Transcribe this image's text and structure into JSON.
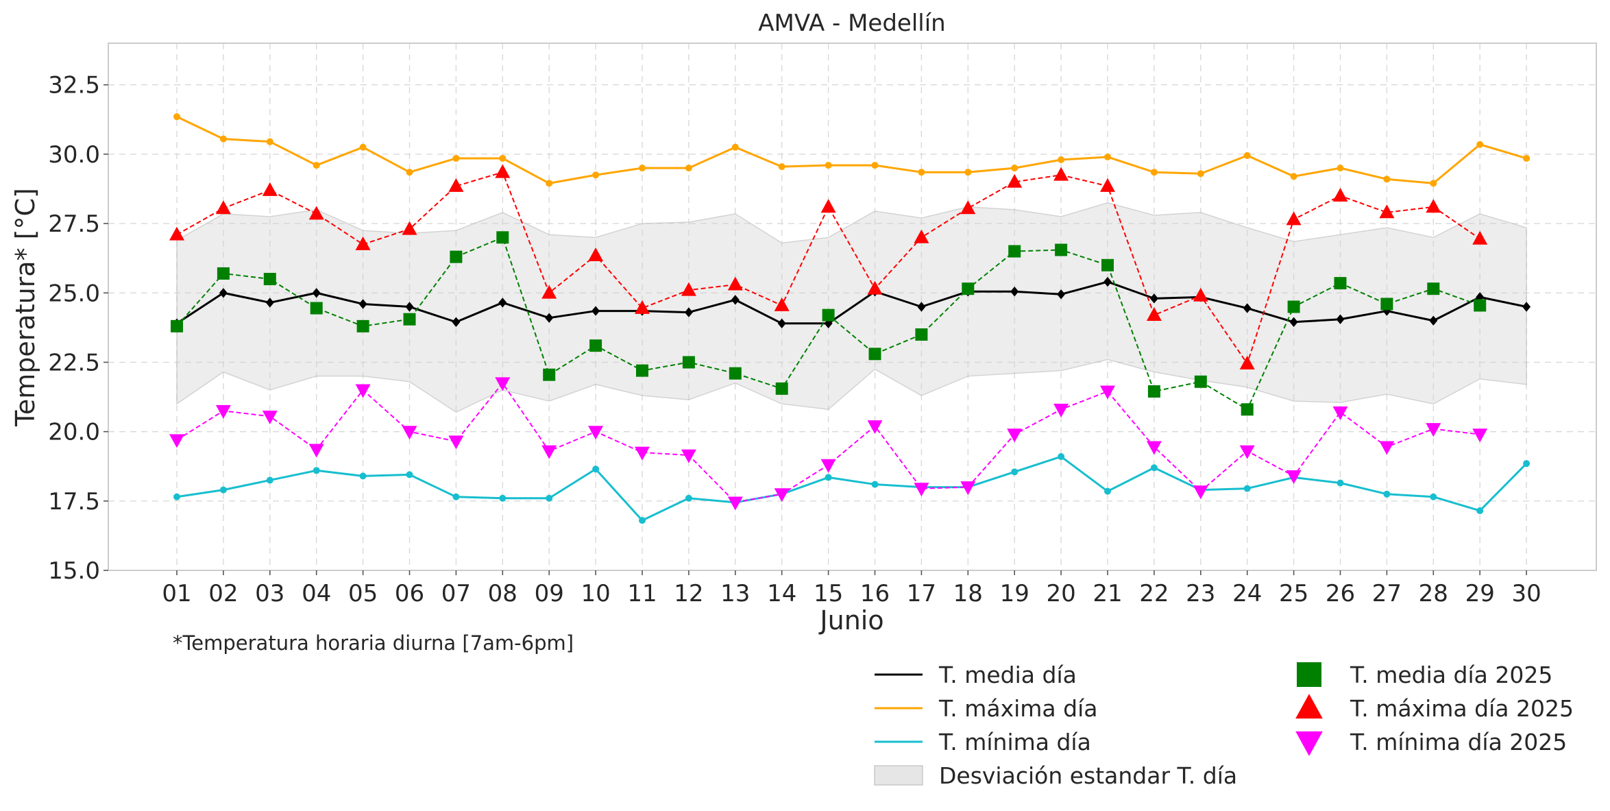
{
  "chart_data": {
    "type": "line",
    "title": "AMVA - Medellín",
    "xlabel": "Junio",
    "ylabel": "Temperatura* [°C]",
    "note": "*Temperatura horaria diurna [7am-6pm]",
    "categories": [
      "01",
      "02",
      "03",
      "04",
      "05",
      "06",
      "07",
      "08",
      "09",
      "10",
      "11",
      "12",
      "13",
      "14",
      "15",
      "16",
      "17",
      "18",
      "19",
      "20",
      "21",
      "22",
      "23",
      "24",
      "25",
      "26",
      "27",
      "28",
      "29",
      "30"
    ],
    "ylim": [
      15.0,
      34.0
    ],
    "yticks": [
      "15.0",
      "17.5",
      "20.0",
      "22.5",
      "25.0",
      "27.5",
      "30.0",
      "32.5"
    ],
    "grid": true,
    "legend_position": "lower-right, outside plot",
    "series": [
      {
        "name": "T. media día",
        "color": "#000000",
        "style": "solid-line",
        "marker": "diamond",
        "values": [
          23.9,
          25.0,
          24.65,
          25.0,
          24.6,
          24.5,
          23.95,
          24.65,
          24.1,
          24.35,
          24.35,
          24.3,
          24.75,
          23.9,
          23.9,
          25.05,
          24.5,
          25.05,
          25.05,
          24.95,
          25.4,
          24.8,
          24.85,
          24.45,
          23.95,
          24.05,
          24.35,
          24.0,
          24.85,
          24.5
        ]
      },
      {
        "name": "T. máxima día",
        "color": "#ffa500",
        "style": "solid-line",
        "marker": "circle",
        "values": [
          31.35,
          30.55,
          30.45,
          29.6,
          30.25,
          29.35,
          29.85,
          29.85,
          28.95,
          29.25,
          29.5,
          29.5,
          30.25,
          29.55,
          29.6,
          29.6,
          29.35,
          29.35,
          29.5,
          29.8,
          29.9,
          29.35,
          29.3,
          29.95,
          29.2,
          29.5,
          29.1,
          28.95,
          30.35,
          29.85
        ]
      },
      {
        "name": "T. mínima día",
        "color": "#17becf",
        "style": "solid-line",
        "marker": "circle",
        "values": [
          17.65,
          17.9,
          18.25,
          18.6,
          18.4,
          18.45,
          17.65,
          17.6,
          17.6,
          18.65,
          16.8,
          17.6,
          17.45,
          17.75,
          18.35,
          18.1,
          18.0,
          18.0,
          18.55,
          19.1,
          17.85,
          18.7,
          17.9,
          17.95,
          18.35,
          18.15,
          17.75,
          17.65,
          17.15,
          18.85
        ]
      },
      {
        "name": "Desviación estandar T. día",
        "color": "#bdbdbd",
        "style": "band",
        "upper": [
          26.9,
          27.85,
          27.75,
          28.0,
          27.25,
          27.15,
          27.25,
          27.9,
          27.1,
          27.0,
          27.5,
          27.55,
          27.85,
          26.8,
          27.0,
          27.95,
          27.7,
          28.1,
          28.0,
          27.75,
          28.25,
          27.8,
          27.9,
          27.35,
          26.85,
          27.1,
          27.35,
          27.0,
          27.85,
          27.35
        ],
        "lower": [
          21.0,
          22.15,
          21.5,
          22.0,
          22.0,
          21.8,
          20.7,
          21.5,
          21.1,
          21.7,
          21.3,
          21.15,
          21.75,
          21.0,
          20.8,
          22.25,
          21.3,
          22.0,
          22.1,
          22.2,
          22.6,
          22.15,
          21.85,
          21.6,
          21.1,
          21.05,
          21.35,
          21.0,
          21.9,
          21.7
        ]
      },
      {
        "name": "T. media día 2025",
        "color": "#008000",
        "style": "dashed-line",
        "marker": "square",
        "values": [
          23.8,
          25.7,
          25.5,
          24.45,
          23.8,
          24.05,
          26.3,
          27.0,
          22.05,
          23.1,
          22.2,
          22.5,
          22.1,
          21.55,
          24.2,
          22.8,
          23.5,
          25.15,
          26.5,
          26.55,
          26.0,
          21.45,
          21.8,
          20.8,
          24.5,
          25.35,
          24.6,
          25.15,
          24.55,
          null
        ]
      },
      {
        "name": "T. máxima día 2025",
        "color": "#ff0000",
        "style": "dashed-line",
        "marker": "triangle-up",
        "values": [
          27.1,
          28.05,
          28.7,
          27.85,
          26.75,
          27.3,
          28.85,
          29.35,
          25.0,
          26.35,
          24.45,
          25.1,
          25.3,
          24.55,
          28.1,
          25.15,
          27.0,
          28.05,
          29.0,
          29.25,
          28.85,
          24.2,
          24.9,
          22.45,
          27.65,
          28.5,
          27.9,
          28.1,
          26.95,
          null
        ]
      },
      {
        "name": "T. mínima día 2025",
        "color": "#ff00ff",
        "style": "dashed-line",
        "marker": "triangle-down",
        "values": [
          19.7,
          20.75,
          20.55,
          19.35,
          21.5,
          20.0,
          19.65,
          21.75,
          19.3,
          20.0,
          19.25,
          19.15,
          17.45,
          17.75,
          18.8,
          20.2,
          17.95,
          18.0,
          19.9,
          20.8,
          21.45,
          19.45,
          17.85,
          19.3,
          18.4,
          20.7,
          19.45,
          20.1,
          19.9,
          null
        ]
      }
    ]
  }
}
